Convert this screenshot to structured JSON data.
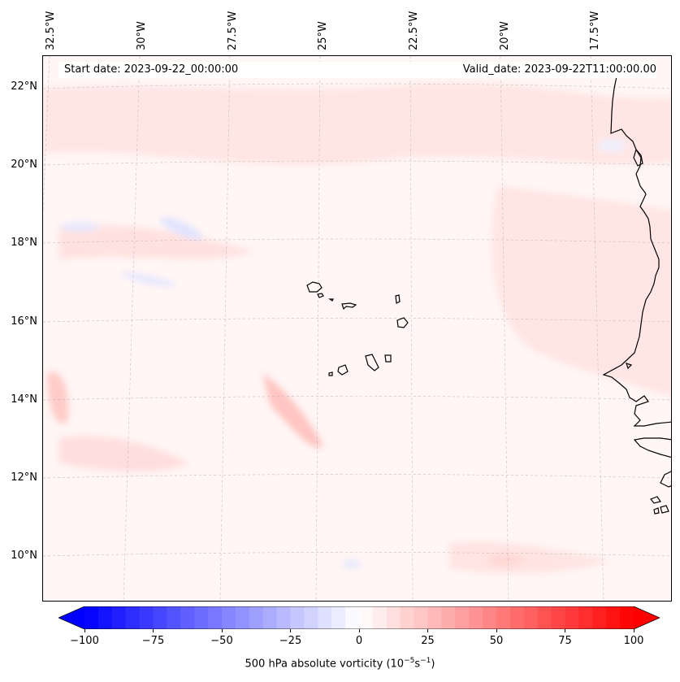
{
  "map": {
    "start_date_text": "Start date: 2023-09-22_00:00:00",
    "valid_date_text": "Valid_date: 2023-09-22T11:00:00.00",
    "longitude_labels": [
      "32.5°W",
      "30°W",
      "27.5°W",
      "25°W",
      "22.5°W",
      "20°W",
      "17.5°W"
    ],
    "latitude_labels": [
      "22°N",
      "20°N",
      "18°N",
      "16°N",
      "14°N",
      "12°N",
      "10°N"
    ],
    "background_color": "#fff6f5",
    "coastline_color": "#000000"
  },
  "colorbar": {
    "ticks": [
      "−100",
      "−75",
      "−50",
      "−25",
      "0",
      "25",
      "50",
      "75",
      "100"
    ],
    "label_main": "500 hPa absolute vorticity (10",
    "label_exp1": "−5",
    "label_mid": "s",
    "label_exp2": "−1",
    "label_end": ")",
    "min_color": "#0000ff",
    "mid_color": "#ffffff",
    "max_color": "#ff0000"
  }
}
